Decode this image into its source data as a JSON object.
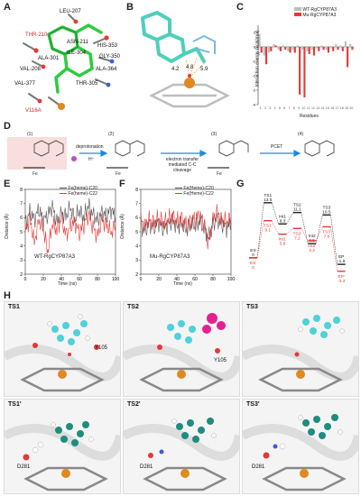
{
  "panels": {
    "A": {
      "letter": "A",
      "residues": [
        "LEU-207",
        "THR-210",
        "ASN-211",
        "ILE-304",
        "ALA-301",
        "HIS-353",
        "GLY-350",
        "ALA-364",
        "THR-305",
        "VAL-377",
        "VAL-208",
        "V116A"
      ]
    },
    "B": {
      "letter": "B",
      "distances": [
        "4.2",
        "4.8",
        "5.9"
      ]
    },
    "C": {
      "letter": "C",
      "ylabel": "Interaction energy (kcal/mol)",
      "xlabel": "Residues",
      "legend": [
        "WT-RgCYP87A3",
        "Mu-RgCYP87A3"
      ]
    },
    "D": {
      "letter": "D",
      "steps": [
        "(1)",
        "(2)",
        "(3)",
        "(4)"
      ],
      "arrow_labels": [
        "deprotonation",
        "electron transfer mediated C-C cleavage",
        "PCET"
      ],
      "proton": "H⁺"
    },
    "E": {
      "letter": "E",
      "title": "WT-RgCYP87A3",
      "legend": [
        "Fe(heme)-C20",
        "Fe(heme)-C22"
      ],
      "xlabel": "Time (ns)",
      "ylabel": "Distance (Å)"
    },
    "F": {
      "letter": "F",
      "title": "Mu-RgCYP87A3",
      "legend": [
        "Fe(Heme)-C20",
        "Fe(Heme)-C22"
      ],
      "xlabel": "Time (ns)",
      "ylabel": "Distance (Å)"
    },
    "G": {
      "letter": "G",
      "black": [
        {
          "label": "ES",
          "value": "0"
        },
        {
          "label": "TS1",
          "value": "13.5"
        },
        {
          "label": "Int1",
          "value": "8.3"
        },
        {
          "label": "TS2",
          "value": "11.1"
        },
        {
          "label": "Int2",
          "value": "3.5"
        },
        {
          "label": "TS3",
          "value": "10.5"
        },
        {
          "label": "EP",
          "value": "-1.6"
        }
      ],
      "red": [
        {
          "label": "ES'",
          "value": "0"
        },
        {
          "label": "TS1'",
          "value": "9.1"
        },
        {
          "label": "Int1'",
          "value": "5.8"
        },
        {
          "label": "TS2'",
          "value": "7.2"
        },
        {
          "label": "Int2'",
          "value": "4.2"
        },
        {
          "label": "TS3'",
          "value": "7.6"
        },
        {
          "label": "EP'",
          "value": "-3.3"
        }
      ]
    },
    "H": {
      "letter": "H",
      "tiles": [
        {
          "name": "TS1",
          "residue": "Y105"
        },
        {
          "name": "TS2",
          "residue": "Y105"
        },
        {
          "name": "TS3",
          "residue": ""
        },
        {
          "name": "TS1'",
          "residue": "D281"
        },
        {
          "name": "TS2'",
          "residue": "D281"
        },
        {
          "name": "TS3'",
          "residue": "D281"
        }
      ]
    }
  },
  "chart_data": [
    {
      "type": "bar",
      "title": "",
      "xlabel": "Residues",
      "ylabel": "Interaction energy (kcal/mol)",
      "ylim": [
        -4,
        1.5
      ],
      "categories": [
        "1",
        "2",
        "3",
        "4",
        "5",
        "6",
        "7",
        "8",
        "9",
        "10",
        "11",
        "12",
        "13",
        "14",
        "15",
        "16",
        "17",
        "18",
        "19",
        "20"
      ],
      "series": [
        {
          "name": "WT-RgCYP87A3",
          "values": [
            0.9,
            -0.6,
            -0.4,
            0.2,
            -0.2,
            0.1,
            -0.3,
            -0.2,
            0.1,
            -0.2,
            -0.3,
            -0.2,
            -0.1,
            0.1,
            -0.2,
            -0.1,
            0.2,
            0.1,
            0.4,
            0.2
          ]
        },
        {
          "name": "Mu-RgCYP87A3",
          "values": [
            -0.4,
            -1.2,
            -0.3,
            0.1,
            -0.3,
            -0.2,
            -0.4,
            -0.4,
            -3.3,
            -3.5,
            -0.5,
            -0.6,
            -0.3,
            -0.2,
            -0.4,
            -0.3,
            -0.2,
            -0.3,
            -1.4,
            -0.2
          ]
        }
      ]
    },
    {
      "type": "line",
      "title": "WT-RgCYP87A3",
      "xlabel": "Time (ns)",
      "ylabel": "Distance (Å)",
      "xlim": [
        0,
        100
      ],
      "ylim": [
        2,
        8
      ],
      "series": [
        {
          "name": "Fe(heme)-C20",
          "x": [
            0,
            5,
            10,
            15,
            20,
            25,
            30,
            35,
            40,
            45,
            50,
            55,
            60,
            65,
            70,
            75,
            80,
            85,
            90,
            95,
            100
          ],
          "values": [
            5.6,
            6.4,
            5.9,
            6.6,
            5.8,
            6.2,
            6.8,
            5.7,
            6.3,
            6.1,
            6.7,
            5.9,
            6.5,
            6.0,
            6.9,
            6.2,
            5.8,
            6.4,
            6.1,
            6.6,
            6.0
          ]
        },
        {
          "name": "Fe(heme)-C22",
          "x": [
            0,
            5,
            10,
            15,
            20,
            25,
            30,
            35,
            40,
            45,
            50,
            55,
            60,
            65,
            70,
            75,
            80,
            85,
            90,
            95,
            100
          ],
          "values": [
            5.0,
            6.0,
            4.2,
            5.8,
            5.2,
            3.6,
            5.6,
            5.1,
            5.9,
            4.8,
            5.4,
            5.7,
            4.9,
            5.5,
            6.2,
            5.3,
            4.7,
            5.8,
            5.5,
            4.9,
            5.6
          ]
        }
      ]
    },
    {
      "type": "line",
      "title": "Mu-RgCYP87A3",
      "xlabel": "Time (ns)",
      "ylabel": "Distance (Å)",
      "xlim": [
        0,
        100
      ],
      "ylim": [
        2,
        8
      ],
      "series": [
        {
          "name": "Fe(Heme)-C20",
          "x": [
            0,
            5,
            10,
            15,
            20,
            25,
            30,
            35,
            40,
            45,
            50,
            55,
            60,
            65,
            70,
            75,
            80,
            85,
            90,
            95,
            100
          ],
          "values": [
            5.4,
            5.1,
            5.6,
            5.3,
            5.7,
            5.2,
            5.5,
            5.8,
            5.3,
            5.6,
            5.1,
            5.5,
            5.4,
            5.7,
            5.2,
            4.6,
            5.6,
            5.9,
            5.5,
            5.3,
            5.6
          ]
        },
        {
          "name": "Fe(Heme)-C22",
          "x": [
            0,
            5,
            10,
            15,
            20,
            25,
            30,
            35,
            40,
            45,
            50,
            55,
            60,
            65,
            70,
            75,
            80,
            85,
            90,
            95,
            100
          ],
          "values": [
            5.8,
            5.5,
            5.9,
            5.6,
            6.0,
            5.6,
            5.9,
            6.1,
            5.7,
            6.0,
            5.5,
            5.8,
            5.9,
            6.2,
            5.7,
            4.1,
            5.9,
            6.4,
            5.8,
            5.7,
            6.0
          ]
        }
      ]
    }
  ]
}
